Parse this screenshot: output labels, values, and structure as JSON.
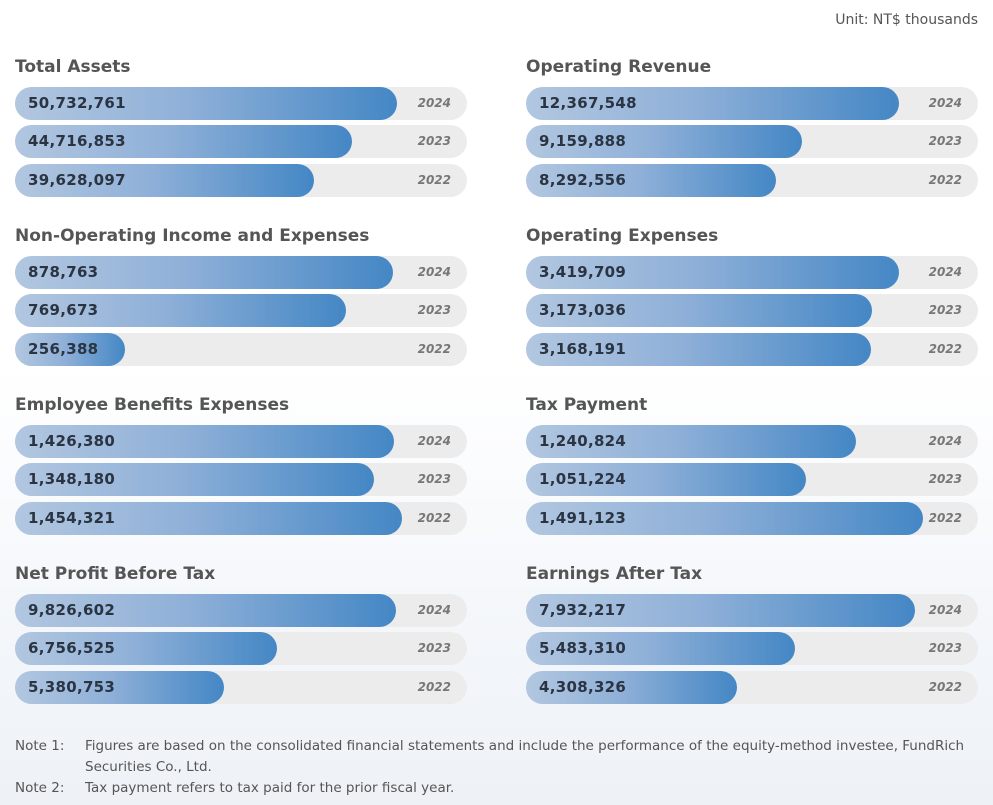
{
  "unit": "Unit: NT$ thousands",
  "chart_data": [
    {
      "type": "bar",
      "title": "Total Assets",
      "categories": [
        "2024",
        "2023",
        "2022"
      ],
      "values": [
        50732761,
        44716853,
        39628097
      ],
      "labels": [
        "50,732,761",
        "44,716,853",
        "39,628,097"
      ],
      "ylim": [
        0,
        60000000
      ]
    },
    {
      "type": "bar",
      "title": "Operating Revenue",
      "categories": [
        "2024",
        "2023",
        "2022"
      ],
      "values": [
        12367548,
        9159888,
        8292556
      ],
      "labels": [
        "12,367,548",
        "9,159,888",
        "8,292,556"
      ],
      "ylim": [
        0,
        15000000
      ]
    },
    {
      "type": "bar",
      "title": "Non-Operating Income and Expenses",
      "categories": [
        "2024",
        "2023",
        "2022"
      ],
      "values": [
        878763,
        769673,
        256388
      ],
      "labels": [
        "878,763",
        "769,673",
        "256,388"
      ],
      "ylim": [
        0,
        1050000
      ]
    },
    {
      "type": "bar",
      "title": "Operating Expenses",
      "categories": [
        "2024",
        "2023",
        "2022"
      ],
      "values": [
        3419709,
        3173036,
        3168191
      ],
      "labels": [
        "3,419,709",
        "3,173,036",
        "3,168,191"
      ],
      "ylim": [
        0,
        4150000
      ]
    },
    {
      "type": "bar",
      "title": "Employee Benefits Expenses",
      "categories": [
        "2024",
        "2023",
        "2022"
      ],
      "values": [
        1426380,
        1348180,
        1454321
      ],
      "labels": [
        "1,426,380",
        "1,348,180",
        "1,454,321"
      ],
      "ylim": [
        0,
        1700000
      ]
    },
    {
      "type": "bar",
      "title": "Tax Payment",
      "categories": [
        "2024",
        "2023",
        "2022"
      ],
      "values": [
        1240824,
        1051224,
        1491123
      ],
      "labels": [
        "1,240,824",
        "1,051,224",
        "1,491,123"
      ],
      "ylim": [
        0,
        1700000
      ]
    },
    {
      "type": "bar",
      "title": "Net Profit Before Tax",
      "categories": [
        "2024",
        "2023",
        "2022"
      ],
      "values": [
        9826602,
        6756525,
        5380753
      ],
      "labels": [
        "9,826,602",
        "6,756,525",
        "5,380,753"
      ],
      "ylim": [
        0,
        11650000
      ]
    },
    {
      "type": "bar",
      "title": "Earnings After Tax",
      "categories": [
        "2024",
        "2023",
        "2022"
      ],
      "values": [
        7932217,
        5483310,
        4308326
      ],
      "labels": [
        "7,932,217",
        "5,483,310",
        "4,308,326"
      ],
      "ylim": [
        0,
        9220000
      ]
    }
  ],
  "notes": [
    {
      "label": "Note 1:",
      "text": "Figures are based on the consolidated financial statements and include the performance of the equity-method investee, FundRich Securities Co., Ltd."
    },
    {
      "label": "Note 2:",
      "text": "Tax payment refers to tax paid for the prior fiscal year."
    }
  ]
}
